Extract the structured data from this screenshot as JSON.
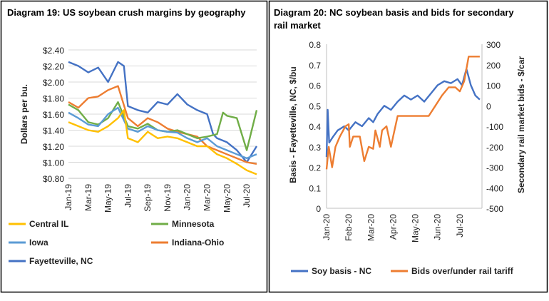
{
  "colors": {
    "central_il": "#FFC000",
    "minnesota": "#70AD47",
    "iowa": "#5B9BD5",
    "indiana_ohio": "#ED7D31",
    "fayetteville": "#4472C4",
    "soy_basis": "#4472C4",
    "bids": "#ED7D31",
    "grid": "#D9D9D9",
    "border": "#000000"
  },
  "chart_data": [
    {
      "type": "line",
      "title": "Diagram 19: US soybean crush margins by geography",
      "ylabel": "Dollars per bu.",
      "ylim": [
        0.8,
        2.4
      ],
      "yticks": [
        "$0.80",
        "$1.00",
        "$1.20",
        "$1.40",
        "$1.60",
        "$1.80",
        "$2.00",
        "$2.20",
        "$2.40"
      ],
      "xticks": [
        "Jan-19",
        "Mar-19",
        "May-19",
        "Jul-19",
        "Sep-19",
        "Nov-19",
        "Jan-20",
        "Mar-20",
        "May-20",
        "Jul-20"
      ],
      "x_range": [
        "Jan-19",
        "Aug-20"
      ],
      "grid": true,
      "legend_position": "bottom",
      "series": [
        {
          "name": "Central IL",
          "color_key": "central_il",
          "points": [
            [
              "Jan-19",
              1.5
            ],
            [
              "Feb-19",
              1.45
            ],
            [
              "Mar-19",
              1.4
            ],
            [
              "Apr-19",
              1.38
            ],
            [
              "May-19",
              1.45
            ],
            [
              "Jun-19",
              1.55
            ],
            [
              "Jun-19b",
              1.65
            ],
            [
              "Jul-19",
              1.3
            ],
            [
              "Aug-19",
              1.25
            ],
            [
              "Sep-19",
              1.38
            ],
            [
              "Oct-19",
              1.3
            ],
            [
              "Nov-19",
              1.32
            ],
            [
              "Dec-19",
              1.3
            ],
            [
              "Jan-20",
              1.25
            ],
            [
              "Feb-20",
              1.2
            ],
            [
              "Mar-20",
              1.2
            ],
            [
              "Apr-20",
              1.1
            ],
            [
              "May-20",
              1.05
            ],
            [
              "Jun-20",
              0.98
            ],
            [
              "Jul-20",
              0.9
            ],
            [
              "Aug-20",
              0.85
            ]
          ]
        },
        {
          "name": "Minnesota",
          "color_key": "minnesota",
          "points": [
            [
              "Jan-19",
              1.72
            ],
            [
              "Feb-19",
              1.65
            ],
            [
              "Mar-19",
              1.5
            ],
            [
              "Apr-19",
              1.47
            ],
            [
              "May-19",
              1.55
            ],
            [
              "Jun-19",
              1.75
            ],
            [
              "Jul-19",
              1.45
            ],
            [
              "Aug-19",
              1.42
            ],
            [
              "Sep-19",
              1.48
            ],
            [
              "Oct-19",
              1.4
            ],
            [
              "Nov-19",
              1.38
            ],
            [
              "Dec-19",
              1.4
            ],
            [
              "Jan-20",
              1.35
            ],
            [
              "Feb-20",
              1.3
            ],
            [
              "Mar-20",
              1.32
            ],
            [
              "Apr-20",
              1.35
            ],
            [
              "Apr-20b",
              1.62
            ],
            [
              "May-20",
              1.58
            ],
            [
              "Jun-20",
              1.55
            ],
            [
              "Jul-20",
              1.15
            ],
            [
              "Aug-20",
              1.65
            ]
          ]
        },
        {
          "name": "Iowa",
          "color_key": "iowa",
          "points": [
            [
              "Jan-19",
              1.62
            ],
            [
              "Feb-19",
              1.55
            ],
            [
              "Mar-19",
              1.47
            ],
            [
              "Apr-19",
              1.45
            ],
            [
              "May-19",
              1.6
            ],
            [
              "Jun-19",
              1.68
            ],
            [
              "Jul-19",
              1.42
            ],
            [
              "Aug-19",
              1.38
            ],
            [
              "Sep-19",
              1.45
            ],
            [
              "Oct-19",
              1.4
            ],
            [
              "Nov-19",
              1.38
            ],
            [
              "Dec-19",
              1.37
            ],
            [
              "Jan-20",
              1.3
            ],
            [
              "Feb-20",
              1.25
            ],
            [
              "Mar-20",
              1.3
            ],
            [
              "Apr-20",
              1.2
            ],
            [
              "May-20",
              1.15
            ],
            [
              "Jun-20",
              1.1
            ],
            [
              "Jul-20",
              1.05
            ],
            [
              "Aug-20",
              1.1
            ]
          ]
        },
        {
          "name": "Indiana-Ohio",
          "color_key": "indiana_ohio",
          "points": [
            [
              "Jan-19",
              1.75
            ],
            [
              "Feb-19",
              1.68
            ],
            [
              "Mar-19",
              1.8
            ],
            [
              "Apr-19",
              1.82
            ],
            [
              "May-19",
              1.9
            ],
            [
              "Jun-19",
              1.95
            ],
            [
              "Jul-19",
              1.55
            ],
            [
              "Aug-19",
              1.45
            ],
            [
              "Sep-19",
              1.55
            ],
            [
              "Oct-19",
              1.5
            ],
            [
              "Nov-19",
              1.42
            ],
            [
              "Dec-19",
              1.38
            ],
            [
              "Jan-20",
              1.35
            ],
            [
              "Feb-20",
              1.32
            ],
            [
              "Mar-20",
              1.2
            ],
            [
              "Apr-20",
              1.15
            ],
            [
              "May-20",
              1.1
            ],
            [
              "Jun-20",
              1.05
            ],
            [
              "Jul-20",
              1.0
            ],
            [
              "Aug-20",
              0.98
            ]
          ]
        },
        {
          "name": "Fayetteville, NC",
          "color_key": "fayetteville",
          "points": [
            [
              "Jan-19",
              2.25
            ],
            [
              "Feb-19",
              2.2
            ],
            [
              "Mar-19",
              2.12
            ],
            [
              "Apr-19",
              2.18
            ],
            [
              "May-19",
              2.0
            ],
            [
              "Jun-19",
              2.25
            ],
            [
              "Jun-19b",
              2.2
            ],
            [
              "Jul-19",
              1.7
            ],
            [
              "Aug-19",
              1.65
            ],
            [
              "Sep-19",
              1.62
            ],
            [
              "Oct-19",
              1.75
            ],
            [
              "Nov-19",
              1.72
            ],
            [
              "Dec-19",
              1.85
            ],
            [
              "Jan-20",
              1.72
            ],
            [
              "Feb-20",
              1.65
            ],
            [
              "Mar-20",
              1.6
            ],
            [
              "Mar-20b",
              1.35
            ],
            [
              "Apr-20",
              1.3
            ],
            [
              "May-20",
              1.25
            ],
            [
              "Jun-20",
              1.15
            ],
            [
              "Jul-20",
              1.0
            ],
            [
              "Aug-20",
              1.2
            ]
          ]
        }
      ]
    },
    {
      "type": "line",
      "title_line1": "Diagram 20: NC soybean basis and bids for secondary",
      "title_line2": "rail market",
      "ylabel_left": "Basis - Fayetteville, NC, $/bu",
      "ylabel_right": "Secondary rail market bids - $/car",
      "ylim_left": [
        0,
        0.8
      ],
      "ylim_right": [
        -500,
        300
      ],
      "yticks_left": [
        "0",
        "0.1",
        "0.2",
        "0.3",
        "0.4",
        "0.5",
        "0.6",
        "0.7",
        "0.8"
      ],
      "yticks_right": [
        "-500",
        "-400",
        "-300",
        "-200",
        "-100",
        "0",
        "100",
        "200",
        "300"
      ],
      "xticks": [
        "Jan-20",
        "Feb-20",
        "Mar-20",
        "Apr-20",
        "May-20",
        "Jun-20",
        "Jul-20"
      ],
      "x_range": [
        "Jan-20",
        "Aug-20"
      ],
      "grid": false,
      "legend_position": "bottom",
      "series": [
        {
          "name": "Soy basis - NC",
          "axis": "left",
          "color_key": "soy_basis",
          "points": [
            [
              0.0,
              0.25
            ],
            [
              0.05,
              0.48
            ],
            [
              0.12,
              0.32
            ],
            [
              0.3,
              0.35
            ],
            [
              0.5,
              0.38
            ],
            [
              0.8,
              0.4
            ],
            [
              1.0,
              0.38
            ],
            [
              1.3,
              0.42
            ],
            [
              1.6,
              0.4
            ],
            [
              1.9,
              0.44
            ],
            [
              2.1,
              0.42
            ],
            [
              2.3,
              0.46
            ],
            [
              2.6,
              0.5
            ],
            [
              2.9,
              0.48
            ],
            [
              3.2,
              0.52
            ],
            [
              3.5,
              0.55
            ],
            [
              3.8,
              0.53
            ],
            [
              4.1,
              0.55
            ],
            [
              4.4,
              0.52
            ],
            [
              4.7,
              0.56
            ],
            [
              5.0,
              0.6
            ],
            [
              5.3,
              0.62
            ],
            [
              5.6,
              0.61
            ],
            [
              5.9,
              0.63
            ],
            [
              6.1,
              0.6
            ],
            [
              6.3,
              0.68
            ],
            [
              6.5,
              0.6
            ],
            [
              6.7,
              0.55
            ],
            [
              6.9,
              0.53
            ]
          ]
        },
        {
          "name": "Bids over/under rail tariff",
          "axis": "right",
          "color_key": "bids",
          "points": [
            [
              0.0,
              -310
            ],
            [
              0.1,
              -200
            ],
            [
              0.25,
              -300
            ],
            [
              0.4,
              -200
            ],
            [
              0.6,
              -150
            ],
            [
              0.85,
              -100
            ],
            [
              1.0,
              -90
            ],
            [
              1.05,
              -200
            ],
            [
              1.2,
              -150
            ],
            [
              1.5,
              -150
            ],
            [
              1.7,
              -270
            ],
            [
              1.9,
              -200
            ],
            [
              2.1,
              -210
            ],
            [
              2.2,
              -120
            ],
            [
              2.4,
              -200
            ],
            [
              2.5,
              -120
            ],
            [
              2.7,
              -100
            ],
            [
              2.9,
              -200
            ],
            [
              3.0,
              -150
            ],
            [
              3.2,
              -50
            ],
            [
              3.5,
              -50
            ],
            [
              3.7,
              -50
            ],
            [
              4.0,
              -50
            ],
            [
              4.3,
              -50
            ],
            [
              4.6,
              -50
            ],
            [
              4.9,
              0
            ],
            [
              5.2,
              50
            ],
            [
              5.5,
              90
            ],
            [
              5.8,
              90
            ],
            [
              6.0,
              70
            ],
            [
              6.2,
              120
            ],
            [
              6.4,
              240
            ],
            [
              6.9,
              240
            ]
          ]
        }
      ]
    }
  ]
}
